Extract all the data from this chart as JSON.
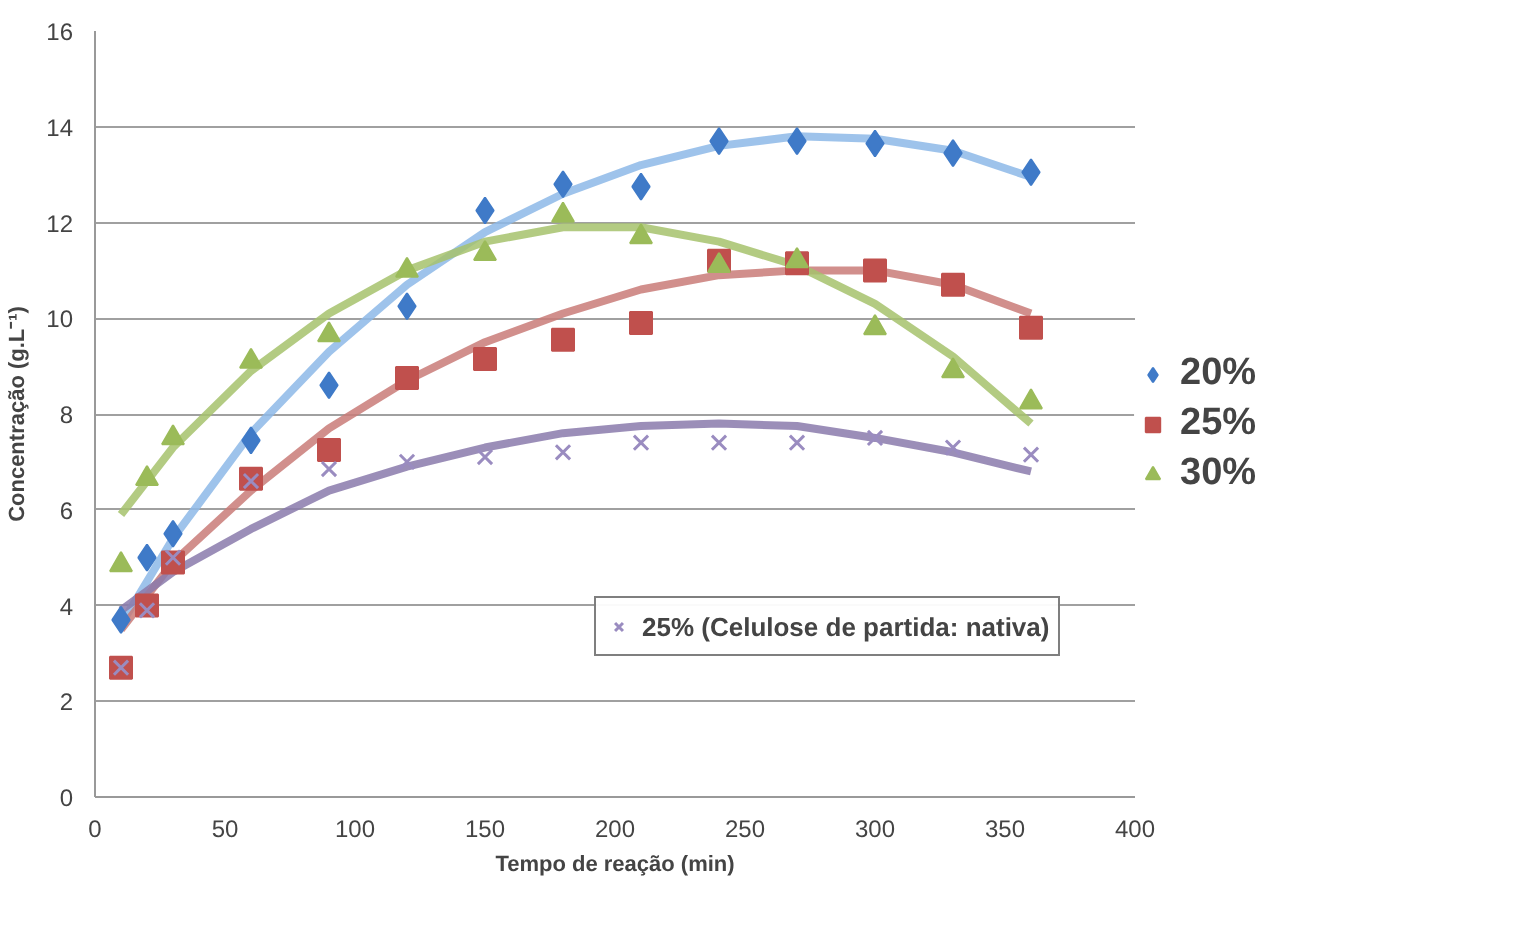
{
  "chart_data": {
    "type": "scatter",
    "xlabel": "Tempo de reação (min)",
    "ylabel": "Concentração (g.L⁻¹)",
    "x": [
      10,
      20,
      30,
      60,
      90,
      120,
      150,
      180,
      210,
      240,
      270,
      300,
      330,
      360
    ],
    "xlim": [
      0,
      400
    ],
    "xticks": [
      0,
      50,
      100,
      150,
      200,
      250,
      300,
      350,
      400
    ],
    "ylim": [
      0,
      16
    ],
    "yticks": [
      0,
      2,
      4,
      6,
      8,
      10,
      12,
      14,
      16
    ],
    "grid": "y",
    "legend": "right",
    "series": [
      {
        "type": "line",
        "color": "#8db8e8",
        "marker": "none",
        "x": [
          10,
          30,
          60,
          90,
          120,
          150,
          180,
          210,
          240,
          270,
          300,
          330,
          360
        ],
        "values": [
          3.6,
          5.4,
          7.6,
          9.3,
          10.7,
          11.8,
          12.6,
          13.2,
          13.6,
          13.8,
          13.75,
          13.5,
          12.95
        ]
      },
      {
        "type": "line",
        "color": "#c97b78",
        "marker": "none",
        "x": [
          10,
          30,
          60,
          90,
          120,
          150,
          180,
          210,
          240,
          270,
          300,
          330,
          360
        ],
        "values": [
          3.5,
          4.9,
          6.4,
          7.7,
          8.7,
          9.5,
          10.1,
          10.6,
          10.9,
          11.0,
          11.0,
          10.7,
          10.1
        ]
      },
      {
        "type": "line",
        "color": "#a6c26c",
        "marker": "none",
        "x": [
          10,
          30,
          60,
          90,
          120,
          150,
          180,
          210,
          240,
          270,
          300,
          330,
          360
        ],
        "values": [
          5.9,
          7.3,
          8.9,
          10.1,
          11.0,
          11.6,
          11.9,
          11.9,
          11.6,
          11.1,
          10.3,
          9.2,
          7.8
        ]
      },
      {
        "type": "line",
        "color": "#8a7aab",
        "marker": "none",
        "x": [
          10,
          30,
          60,
          90,
          120,
          150,
          180,
          210,
          240,
          270,
          300,
          330,
          360
        ],
        "values": [
          3.9,
          4.7,
          5.6,
          6.4,
          6.9,
          7.3,
          7.6,
          7.75,
          7.8,
          7.75,
          7.5,
          7.2,
          6.8
        ]
      },
      {
        "name": "20%",
        "color": "#3f7ac8",
        "marker": "diamond",
        "values": [
          3.7,
          5.0,
          5.5,
          7.45,
          8.6,
          10.25,
          12.25,
          12.8,
          12.75,
          13.7,
          13.7,
          13.65,
          13.45,
          13.05
        ]
      },
      {
        "name": "25%",
        "color": "#c0504d",
        "marker": "square",
        "values": [
          2.7,
          4.0,
          4.9,
          6.65,
          7.25,
          8.75,
          9.15,
          9.55,
          9.9,
          11.2,
          11.15,
          11.0,
          10.7,
          9.8
        ]
      },
      {
        "name": "30%",
        "color": "#9bbb59",
        "marker": "triangle",
        "values": [
          4.85,
          6.65,
          7.5,
          9.1,
          9.65,
          11.0,
          11.35,
          12.15,
          11.7,
          11.1,
          11.2,
          9.8,
          8.9,
          8.25
        ]
      },
      {
        "name": "25% (Celulose de partida: nativa)",
        "color": "#9a8cc0",
        "marker": "cross",
        "values": [
          2.7,
          3.9,
          5.0,
          6.6,
          6.85,
          7.0,
          7.1,
          7.2,
          7.4,
          7.4,
          7.4,
          7.5,
          7.3,
          7.15
        ]
      }
    ]
  }
}
